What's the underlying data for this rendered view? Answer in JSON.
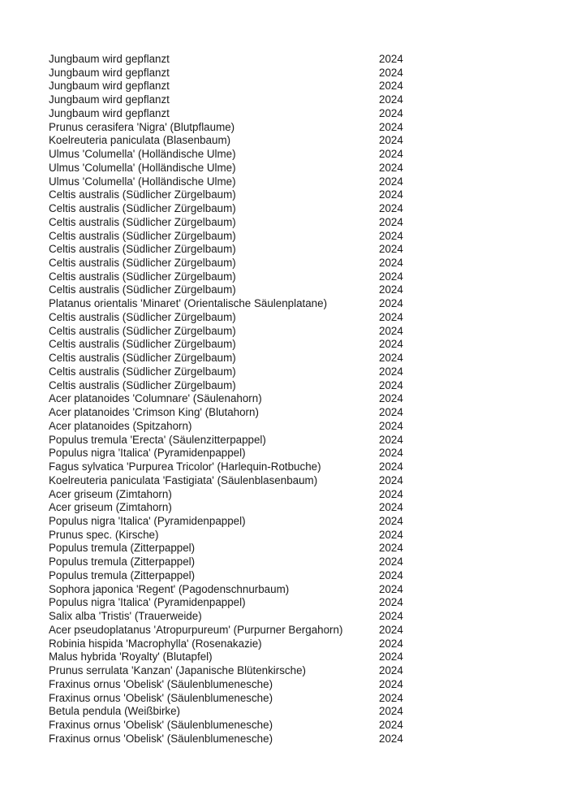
{
  "rows": [
    {
      "name": "Jungbaum wird gepflanzt",
      "year": "2024"
    },
    {
      "name": "Jungbaum wird gepflanzt",
      "year": "2024"
    },
    {
      "name": "Jungbaum wird gepflanzt",
      "year": "2024"
    },
    {
      "name": "Jungbaum wird gepflanzt",
      "year": "2024"
    },
    {
      "name": "Jungbaum wird gepflanzt",
      "year": "2024"
    },
    {
      "name": "Prunus cerasifera 'Nigra' (Blutpflaume)",
      "year": "2024"
    },
    {
      "name": "Koelreuteria paniculata (Blasenbaum)",
      "year": "2024"
    },
    {
      "name": "Ulmus 'Columella' (Holländische Ulme)",
      "year": "2024"
    },
    {
      "name": "Ulmus 'Columella' (Holländische Ulme)",
      "year": "2024"
    },
    {
      "name": "Ulmus 'Columella' (Holländische Ulme)",
      "year": "2024"
    },
    {
      "name": "Celtis australis (Südlicher Zürgelbaum)",
      "year": "2024"
    },
    {
      "name": "Celtis australis (Südlicher Zürgelbaum)",
      "year": "2024"
    },
    {
      "name": "Celtis australis (Südlicher Zürgelbaum)",
      "year": "2024"
    },
    {
      "name": "Celtis australis (Südlicher Zürgelbaum)",
      "year": "2024"
    },
    {
      "name": "Celtis australis (Südlicher Zürgelbaum)",
      "year": "2024"
    },
    {
      "name": "Celtis australis (Südlicher Zürgelbaum)",
      "year": "2024"
    },
    {
      "name": "Celtis australis (Südlicher Zürgelbaum)",
      "year": "2024"
    },
    {
      "name": "Celtis australis (Südlicher Zürgelbaum)",
      "year": "2024"
    },
    {
      "name": "Platanus orientalis 'Minaret' (Orientalische Säulenplatane)",
      "year": "2024"
    },
    {
      "name": "Celtis australis (Südlicher Zürgelbaum)",
      "year": "2024"
    },
    {
      "name": "Celtis australis (Südlicher Zürgelbaum)",
      "year": "2024"
    },
    {
      "name": "Celtis australis (Südlicher Zürgelbaum)",
      "year": "2024"
    },
    {
      "name": "Celtis australis (Südlicher Zürgelbaum)",
      "year": "2024"
    },
    {
      "name": "Celtis australis (Südlicher Zürgelbaum)",
      "year": "2024"
    },
    {
      "name": "Celtis australis (Südlicher Zürgelbaum)",
      "year": "2024"
    },
    {
      "name": "Acer platanoides 'Columnare' (Säulenahorn)",
      "year": "2024"
    },
    {
      "name": "Acer platanoides 'Crimson King' (Blutahorn)",
      "year": "2024"
    },
    {
      "name": "Acer platanoides (Spitzahorn)",
      "year": "2024"
    },
    {
      "name": "Populus tremula 'Erecta' (Säulenzitterpappel)",
      "year": "2024"
    },
    {
      "name": "Populus nigra 'Italica' (Pyramidenpappel)",
      "year": "2024"
    },
    {
      "name": "Fagus sylvatica 'Purpurea Tricolor' (Harlequin-Rotbuche)",
      "year": "2024"
    },
    {
      "name": "Koelreuteria paniculata 'Fastigiata' (Säulenblasenbaum)",
      "year": "2024"
    },
    {
      "name": "Acer griseum (Zimtahorn)",
      "year": "2024"
    },
    {
      "name": "Acer griseum (Zimtahorn)",
      "year": "2024"
    },
    {
      "name": "Populus nigra 'Italica' (Pyramidenpappel)",
      "year": "2024"
    },
    {
      "name": "Prunus spec. (Kirsche)",
      "year": "2024"
    },
    {
      "name": "Populus tremula (Zitterpappel)",
      "year": "2024"
    },
    {
      "name": "Populus tremula (Zitterpappel)",
      "year": "2024"
    },
    {
      "name": "Populus tremula (Zitterpappel)",
      "year": "2024"
    },
    {
      "name": "Sophora japonica 'Regent' (Pagodenschnurbaum)",
      "year": "2024"
    },
    {
      "name": "Populus nigra 'Italica' (Pyramidenpappel)",
      "year": "2024"
    },
    {
      "name": "Salix alba 'Tristis' (Trauerweide)",
      "year": "2024"
    },
    {
      "name": "Acer pseudoplatanus 'Atropurpureum' (Purpurner Bergahorn)",
      "year": "2024"
    },
    {
      "name": "Robinia hispida 'Macrophylla' (Rosenakazie)",
      "year": "2024"
    },
    {
      "name": "Malus hybrida 'Royalty' (Blutapfel)",
      "year": "2024"
    },
    {
      "name": "Prunus serrulata 'Kanzan' (Japanische Blütenkirsche)",
      "year": "2024"
    },
    {
      "name": "Fraxinus ornus 'Obelisk' (Säulenblumenesche)",
      "year": "2024"
    },
    {
      "name": "Fraxinus ornus 'Obelisk' (Säulenblumenesche)",
      "year": "2024"
    },
    {
      "name": "Betula pendula (Weißbirke)",
      "year": "2024"
    },
    {
      "name": "Fraxinus ornus 'Obelisk' (Säulenblumenesche)",
      "year": "2024"
    },
    {
      "name": "Fraxinus ornus 'Obelisk' (Säulenblumenesche)",
      "year": "2024"
    }
  ]
}
